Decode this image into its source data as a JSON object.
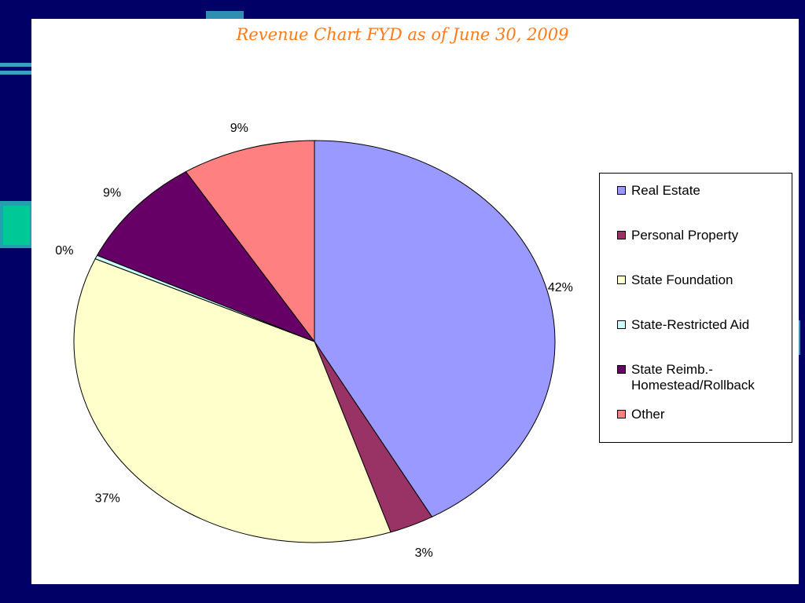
{
  "chart_data": {
    "type": "pie",
    "title": "Revenue Chart FYD as of June 30, 2009",
    "slices": [
      {
        "label": "Real Estate",
        "value": 42,
        "display": "42%",
        "color": "#9999ff"
      },
      {
        "label": "Personal Property",
        "value": 3,
        "display": "3%",
        "color": "#993366"
      },
      {
        "label": "State Foundation",
        "value": 37,
        "display": "37%",
        "color": "#ffffcc"
      },
      {
        "label": "State-Restricted Aid",
        "value": 0.3,
        "display": "0%",
        "color": "#ccffff"
      },
      {
        "label": "State Reimb.- Homestead/Rollback",
        "value": 9,
        "display": "9%",
        "color": "#660066"
      },
      {
        "label": "Other",
        "value": 9,
        "display": "9%",
        "color": "#ff8080"
      }
    ],
    "legend_position": "right"
  },
  "legend": {
    "items": [
      {
        "line1": "Real Estate",
        "line2": ""
      },
      {
        "line1": "Personal Property",
        "line2": ""
      },
      {
        "line1": "State Foundation",
        "line2": ""
      },
      {
        "line1": "State-Restricted Aid",
        "line2": ""
      },
      {
        "line1": "State Reimb.-",
        "line2": "Homestead/Rollback"
      },
      {
        "line1": "Other",
        "line2": ""
      }
    ]
  }
}
